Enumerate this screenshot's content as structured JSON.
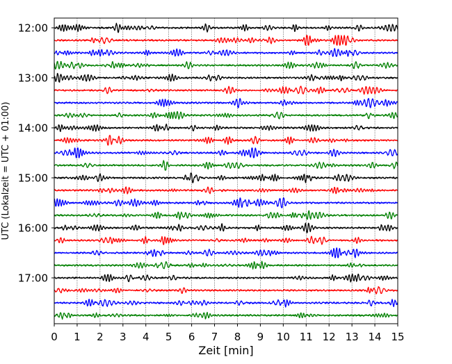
{
  "chart_data": {
    "type": "line",
    "title": "",
    "xlabel": "Zeit  [min]",
    "ylabel": "UTC (Lokalzeit = UTC + 01:00)",
    "xlim": [
      0,
      15
    ],
    "x_ticks": [
      "0",
      "1",
      "2",
      "3",
      "4",
      "5",
      "6",
      "7",
      "8",
      "9",
      "10",
      "11",
      "12",
      "13",
      "14",
      "15"
    ],
    "y_ticks": [
      "12:00",
      "13:00",
      "14:00",
      "15:00",
      "16:00",
      "17:00"
    ],
    "grid": "vertical-dotted",
    "trace_colors": [
      "#000000",
      "#ff0000",
      "#0000ff",
      "#008000"
    ],
    "traces": [
      {
        "start": "12:00",
        "color": "#000000"
      },
      {
        "start": "12:15",
        "color": "#ff0000"
      },
      {
        "start": "12:30",
        "color": "#0000ff"
      },
      {
        "start": "12:45",
        "color": "#008000"
      },
      {
        "start": "13:00",
        "color": "#000000"
      },
      {
        "start": "13:15",
        "color": "#ff0000"
      },
      {
        "start": "13:30",
        "color": "#0000ff"
      },
      {
        "start": "13:45",
        "color": "#008000"
      },
      {
        "start": "14:00",
        "color": "#000000"
      },
      {
        "start": "14:15",
        "color": "#ff0000"
      },
      {
        "start": "14:30",
        "color": "#0000ff"
      },
      {
        "start": "14:45",
        "color": "#008000"
      },
      {
        "start": "15:00",
        "color": "#000000"
      },
      {
        "start": "15:15",
        "color": "#ff0000"
      },
      {
        "start": "15:30",
        "color": "#0000ff"
      },
      {
        "start": "15:45",
        "color": "#008000"
      },
      {
        "start": "16:00",
        "color": "#000000"
      },
      {
        "start": "16:15",
        "color": "#ff0000"
      },
      {
        "start": "16:30",
        "color": "#0000ff"
      },
      {
        "start": "16:45",
        "color": "#008000"
      },
      {
        "start": "17:00",
        "color": "#000000"
      },
      {
        "start": "17:15",
        "color": "#ff0000"
      },
      {
        "start": "17:30",
        "color": "#0000ff"
      },
      {
        "start": "17:45",
        "color": "#008000"
      }
    ]
  }
}
